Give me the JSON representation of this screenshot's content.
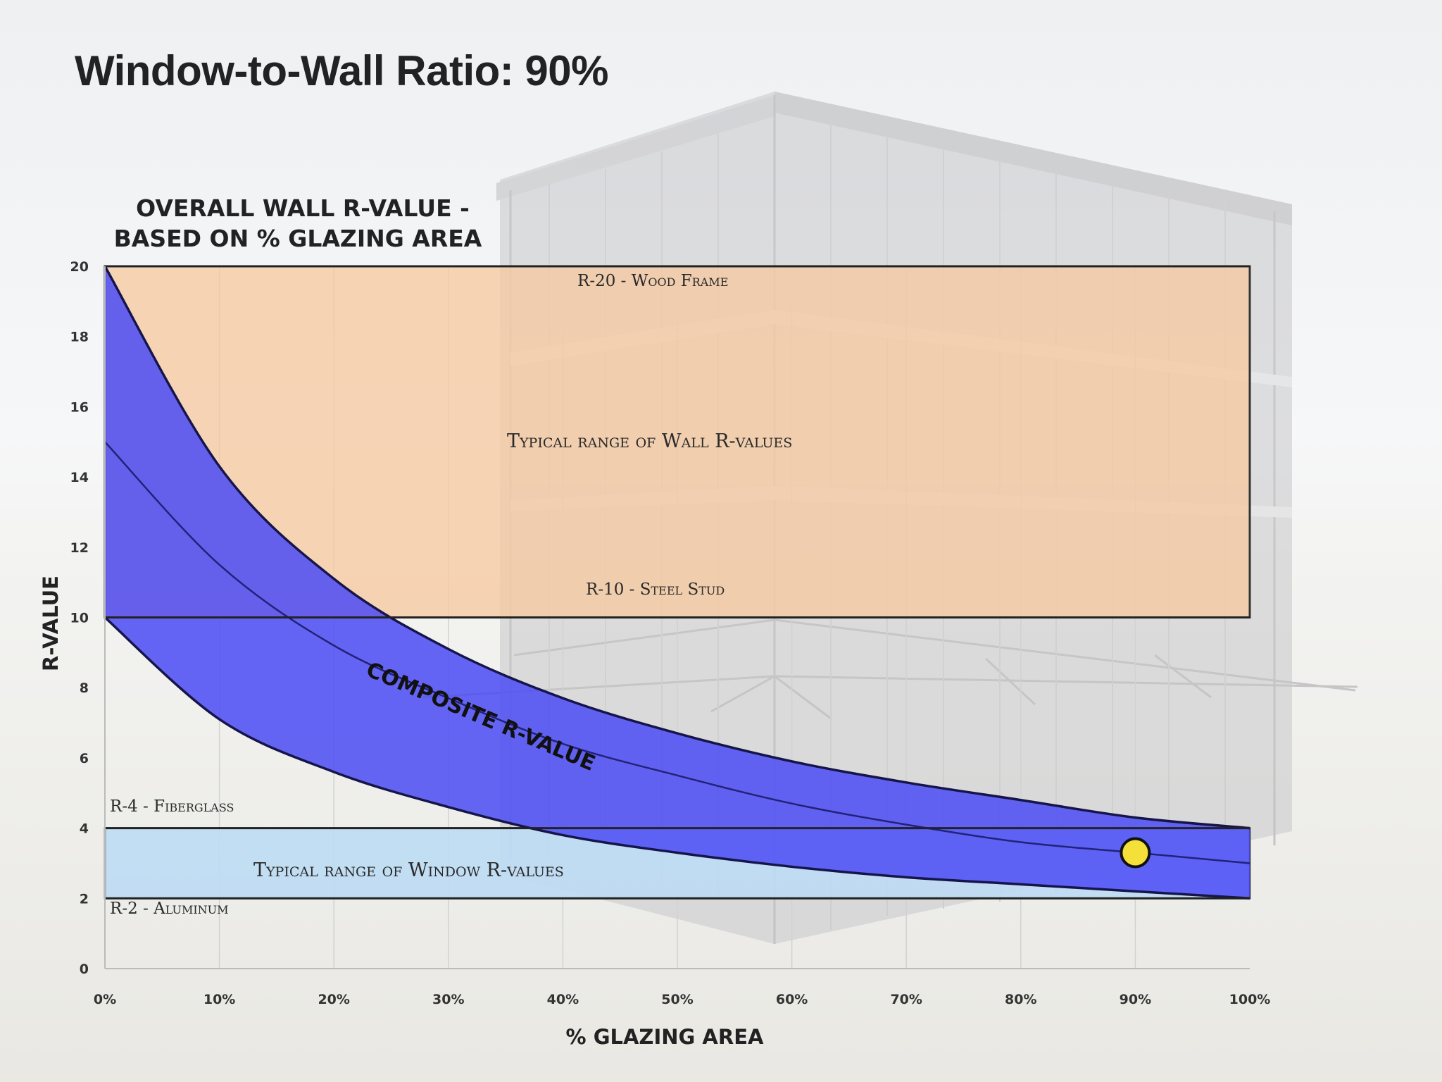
{
  "slide": {
    "title": "Window-to-Wall Ratio: 90%"
  },
  "chart_data": {
    "type": "area",
    "title_lines": [
      "OVERALL WALL R-VALUE -",
      "BASED ON % GLAZING AREA"
    ],
    "xlabel": "% GLAZING AREA",
    "ylabel": "R-VALUE",
    "xlim": [
      0,
      100
    ],
    "ylim": [
      0,
      20
    ],
    "x_ticks": [
      "0%",
      "10%",
      "20%",
      "30%",
      "40%",
      "50%",
      "60%",
      "70%",
      "80%",
      "90%",
      "100%"
    ],
    "y_ticks": [
      "0",
      "2",
      "4",
      "6",
      "8",
      "10",
      "12",
      "14",
      "16",
      "18",
      "20"
    ],
    "wall_range": {
      "label": "Typical range of Wall R-values",
      "low": 10,
      "high": 20,
      "color": "#f6c9a0"
    },
    "window_range": {
      "label": "Typical range of Window R-values",
      "low": 2,
      "high": 4,
      "color": "#bcdcf4"
    },
    "reference_lines": [
      {
        "label": "R-20 - Wood Frame",
        "value": 20
      },
      {
        "label": "R-10 - Steel Stud",
        "value": 10
      },
      {
        "label": "R-4 - Fiberglass",
        "value": 4
      },
      {
        "label": "R-2 - Aluminum",
        "value": 2
      }
    ],
    "composite": {
      "label": "COMPOSITE R-VALUE",
      "color": "#4b4bf5",
      "x": [
        0,
        10,
        20,
        30,
        40,
        50,
        60,
        70,
        80,
        90,
        100
      ],
      "upper": [
        20,
        14.3,
        11.1,
        9.1,
        7.7,
        6.7,
        5.9,
        5.3,
        4.8,
        4.3,
        4.0
      ],
      "middle": [
        15,
        11.5,
        9.2,
        7.7,
        6.4,
        5.5,
        4.7,
        4.1,
        3.6,
        3.3,
        3.0
      ],
      "lower": [
        10,
        7.1,
        5.6,
        4.6,
        3.8,
        3.3,
        2.9,
        2.6,
        2.4,
        2.2,
        2.0
      ]
    },
    "marker": {
      "x": 90,
      "y": 3.3,
      "color": "#f5e03a"
    },
    "grid": true
  }
}
